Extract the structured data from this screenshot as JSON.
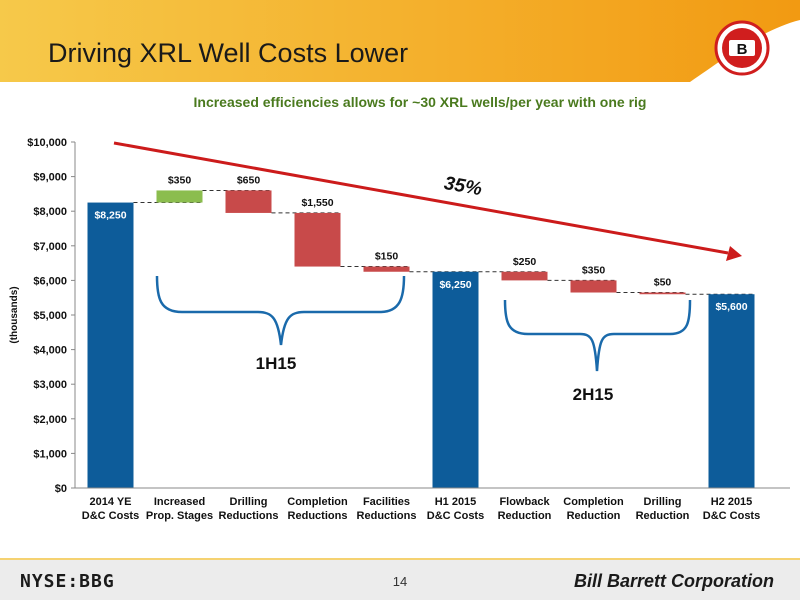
{
  "header": {
    "title": "Driving XRL Well Costs Lower",
    "logo_letter": "B"
  },
  "subtitle": "Increased efficiencies allows for ~30 XRL wells/per year with one rig",
  "footer": {
    "ticker": "NYSE:BBG",
    "page_number": "14",
    "company": "Bill Barrett Corporation"
  },
  "colors": {
    "total": "#0d5c9a",
    "increase": "#8bbd4e",
    "decrease": "#c84a4a",
    "arrow": "#cc1b1b",
    "header_band": "#f7b71d"
  },
  "chart_data": {
    "type": "bar",
    "subtype": "waterfall",
    "ylabel": "(thousands)",
    "ylim": [
      0,
      10000
    ],
    "ytick_labels": [
      "$0",
      "$1,000",
      "$2,000",
      "$3,000",
      "$4,000",
      "$5,000",
      "$6,000",
      "$7,000",
      "$8,000",
      "$9,000",
      "$10,000"
    ],
    "categories": [
      [
        "2014 YE",
        "D&C Costs"
      ],
      [
        "Increased",
        "Prop. Stages"
      ],
      [
        "Drilling",
        "Reductions"
      ],
      [
        "Completion",
        "Reductions"
      ],
      [
        "Facilities",
        "Reductions"
      ],
      [
        "H1 2015",
        "D&C Costs"
      ],
      [
        "Flowback",
        "Reduction"
      ],
      [
        "Completion",
        "Reduction"
      ],
      [
        "Drilling",
        "Reduction"
      ],
      [
        "H2 2015",
        "D&C Costs"
      ]
    ],
    "bars": [
      {
        "kind": "total",
        "value": 8250,
        "label": "$8,250"
      },
      {
        "kind": "increase",
        "value": 350,
        "label": "$350"
      },
      {
        "kind": "decrease",
        "value": 650,
        "label": "$650"
      },
      {
        "kind": "decrease",
        "value": 1550,
        "label": "$1,550"
      },
      {
        "kind": "decrease",
        "value": 150,
        "label": "$150"
      },
      {
        "kind": "total",
        "value": 6250,
        "label": "$6,250"
      },
      {
        "kind": "decrease",
        "value": 250,
        "label": "$250"
      },
      {
        "kind": "decrease",
        "value": 350,
        "label": "$350"
      },
      {
        "kind": "decrease",
        "value": 50,
        "label": "$50"
      },
      {
        "kind": "total",
        "value": 5600,
        "label": "$5,600"
      }
    ],
    "trend_label": "35%",
    "group_labels": [
      "1H15",
      "2H15"
    ]
  }
}
